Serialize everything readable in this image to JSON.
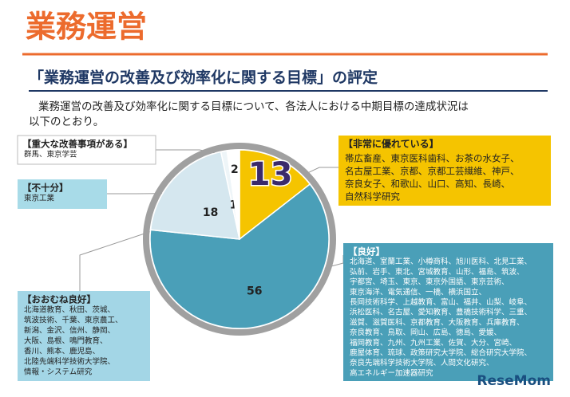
{
  "chart_data": {
    "type": "pie",
    "title": "業務運営",
    "subtitle": "「業務運営の改善及び効率化に関する目標」の評定",
    "description": [
      "業務運営の改善及び効率化に関する目標について、各法人における中期目標の達成状況は",
      "以下のとおり。"
    ],
    "categories": [
      "【非常に優れている】",
      "【良好】",
      "【おおむね良好】",
      "【不十分】",
      "【重大な改善事項がある】"
    ],
    "values": [
      13,
      56,
      18,
      1,
      2
    ],
    "colors": [
      "#f5c400",
      "#4a9fb8",
      "#d5e7ef",
      "#eef5f8",
      "#ffffff"
    ],
    "members": [
      [
        "帯広畜産、東京医科歯科、お茶の水女子、",
        "名古屋工業、京都、京都工芸繊維、神戸、",
        "奈良女子、和歌山、山口、高知、長崎、",
        "自然科学研究"
      ],
      [
        "北海道、室蘭工業、小樽商科、旭川医科、北見工業、",
        "弘前、岩手、東北、宮城教育、山形、福島、筑波、",
        "宇都宮、埼玉、東京、東京外国語、東京芸術、",
        "東京海洋、電気通信、一橋、横浜国立、",
        "長岡技術科学、上越教育、富山、福井、山梨、岐阜、",
        "浜松医科、名古屋、愛知教育、豊橋技術科学、三重、",
        "滋賀、滋賀医科、京都教育、大阪教育、兵庫教育、",
        "奈良教育、鳥取、岡山、広島、徳島、愛媛、",
        "福岡教育、九州、九州工業、佐賀、大分、宮崎、",
        "鹿屋体育、琉球、政策研究大学院、総合研究大学院、",
        "奈良先端科学技術大学院、人間文化研究、",
        "高エネルギー加速器研究"
      ],
      [
        "北海道教育、秋田、茨城、",
        "筑波技術、千葉、東京農工、",
        "新潟、金沢、信州、静岡、",
        "大阪、島根、鳴門教育、",
        "香川、熊本、鹿児島、",
        "北陸先端科学技術大学院、",
        "情報・システム研究"
      ],
      [
        "東京工業"
      ],
      [
        "群馬、東京学芸"
      ]
    ],
    "watermark": "ReseMom"
  }
}
